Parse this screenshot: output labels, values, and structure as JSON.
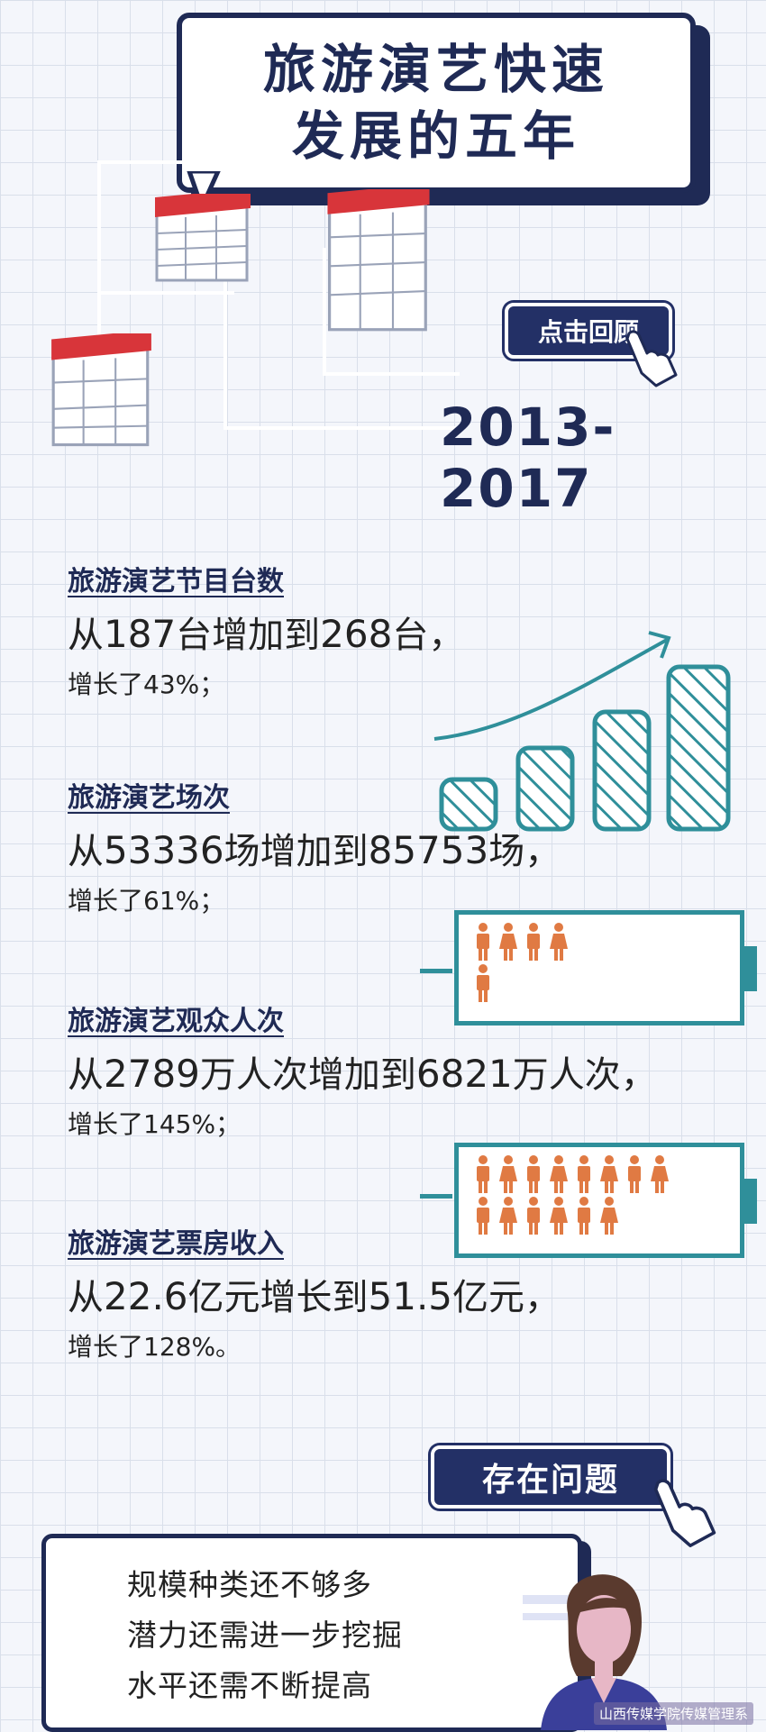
{
  "title": {
    "line1": "旅游演艺快速",
    "line2": "发展的五年"
  },
  "review_button": "点击回顾",
  "year_range": "2013-2017",
  "stats": [
    {
      "title": "旅游演艺节目台数",
      "from_prefix": "从",
      "from": "187",
      "from_unit": "台增加到",
      "to": "268",
      "to_unit": "台，",
      "growth": "增长了43%；"
    },
    {
      "title": "旅游演艺场次",
      "from_prefix": "从",
      "from": "53336",
      "from_unit": "场增加到",
      "to": "85753",
      "to_unit": "场，",
      "growth": "增长了61%；"
    },
    {
      "title": "旅游演艺观众人次",
      "from_prefix": "从",
      "from": "2789",
      "from_unit": "万人次增加到",
      "to": "6821",
      "to_unit": "万人次，",
      "growth": "增长了145%；"
    },
    {
      "title": "旅游演艺票房收入",
      "from_prefix": "从",
      "from": "22.6",
      "from_unit": "亿元增长到",
      "to": "51.5",
      "to_unit": "亿元，",
      "growth": "增长了128%。"
    }
  ],
  "problems_button": "存在问题",
  "problems": [
    "规模种类还不够多",
    "潜力还需进一步挖掘",
    "水平还需不断提高"
  ],
  "watermark": "山西传媒学院传媒管理系",
  "battery1_people": 5,
  "battery2_people": 14,
  "colors": {
    "navy": "#1f2a55",
    "red": "#d8353a",
    "teal": "#2f8f9a",
    "orange": "#e07a43"
  }
}
